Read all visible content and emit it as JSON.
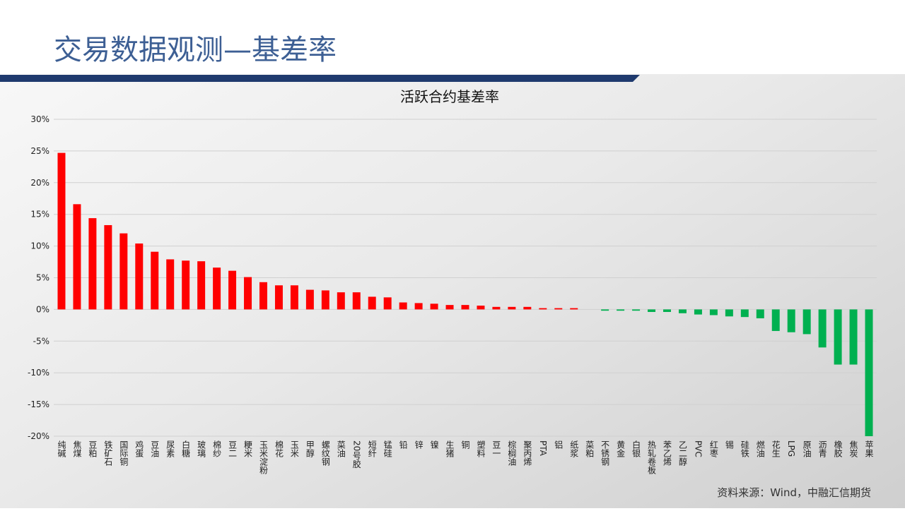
{
  "header": {
    "title": "交易数据观测—基差率"
  },
  "chart_data": {
    "type": "bar",
    "title": "活跃合约基差率",
    "categories": [
      "纯碱",
      "焦煤",
      "豆粕",
      "铁矿石",
      "国际铜",
      "鸡蛋",
      "豆油",
      "尿素",
      "白糖",
      "玻璃",
      "棉纱",
      "豆二",
      "粳米",
      "玉米淀粉",
      "棉花",
      "玉米",
      "甲醇",
      "螺纹钢",
      "菜油",
      "20号胶",
      "短纤",
      "锰硅",
      "铅",
      "锌",
      "镍",
      "生猪",
      "铜",
      "塑料",
      "豆一",
      "棕榈油",
      "聚丙烯",
      "PTA",
      "铝",
      "纸浆",
      "菜粕",
      "不锈钢",
      "黄金",
      "白银",
      "热轧卷板",
      "苯乙烯",
      "乙二醇",
      "PVC",
      "红枣",
      "锡",
      "硅铁",
      "燃油",
      "花生",
      "LPG",
      "原油",
      "沥青",
      "橡胶",
      "焦炭",
      "苹果"
    ],
    "values": [
      24.7,
      16.6,
      14.4,
      13.3,
      12.0,
      10.4,
      9.1,
      7.9,
      7.7,
      7.6,
      6.6,
      6.1,
      5.1,
      4.3,
      3.8,
      3.8,
      3.1,
      3.0,
      2.7,
      2.7,
      2.0,
      1.9,
      1.1,
      1.0,
      0.9,
      0.7,
      0.7,
      0.6,
      0.4,
      0.4,
      0.4,
      0.2,
      0.2,
      0.2,
      0.0,
      -0.2,
      -0.2,
      -0.2,
      -0.4,
      -0.4,
      -0.6,
      -0.8,
      -0.9,
      -1.1,
      -1.2,
      -1.4,
      -3.4,
      -3.6,
      -3.9,
      -6.0,
      -8.7,
      -8.7,
      -20.0
    ],
    "positive_color": "#ff0000",
    "negative_color": "#00b050",
    "ylim": [
      -20,
      30
    ],
    "yticks": [
      {
        "value": -20,
        "label": "-20%"
      },
      {
        "value": -15,
        "label": "-15%"
      },
      {
        "value": -10,
        "label": "-10%"
      },
      {
        "value": -5,
        "label": "-5%"
      },
      {
        "value": 0,
        "label": "0%"
      },
      {
        "value": 5,
        "label": "5%"
      },
      {
        "value": 10,
        "label": "10%"
      },
      {
        "value": 15,
        "label": "15%"
      },
      {
        "value": 20,
        "label": "20%"
      },
      {
        "value": 25,
        "label": "25%"
      },
      {
        "value": 30,
        "label": "30%"
      }
    ],
    "grid": true
  },
  "footer": {
    "source": "资料来源：Wind，中融汇信期货"
  }
}
